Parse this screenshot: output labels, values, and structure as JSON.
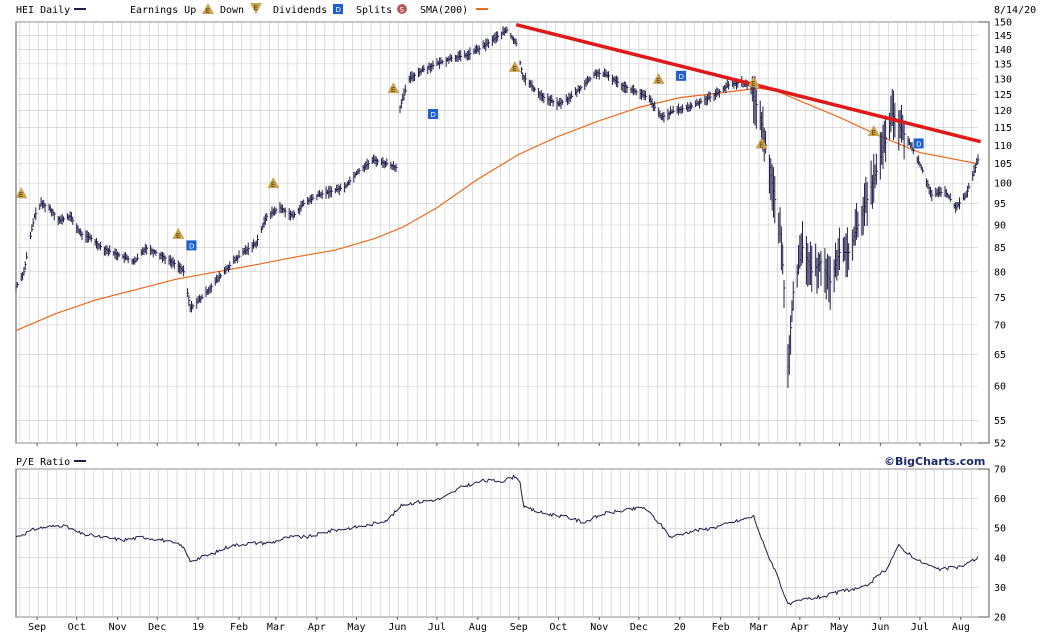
{
  "legend": {
    "ticker_label": "HEI Daily",
    "earnings_up_label": "Earnings Up",
    "down_label": "Down",
    "dividends_label": "Dividends",
    "splits_label": "Splits",
    "sma_label": "SMA(200)",
    "date_label": "8/14/20",
    "pe_label": "P/E Ratio",
    "brand": "©BigCharts.com"
  },
  "colors": {
    "price": "#1f1f4a",
    "sma": "#ee6a1e",
    "trendline": "#e01818",
    "earnings_marker": "#c9a350",
    "dividend_marker": "#1f5fd0",
    "split_marker": "#b05a5a",
    "grid": "#c8c8c8"
  },
  "chart_data": [
    {
      "type": "line",
      "title": "HEI Daily",
      "y_scale": "log",
      "ylim": [
        52,
        150
      ],
      "y_ticks": [
        52,
        55,
        60,
        65,
        70,
        75,
        80,
        85,
        90,
        95,
        100,
        105,
        110,
        115,
        120,
        125,
        130,
        135,
        140,
        145,
        150
      ],
      "x_ticks": [
        "Sep",
        "Oct",
        "Nov",
        "Dec",
        "19",
        "Feb",
        "Mar",
        "Apr",
        "May",
        "Jun",
        "Jul",
        "Aug",
        "Sep",
        "Oct",
        "Nov",
        "Dec",
        "20",
        "Feb",
        "Mar",
        "Apr",
        "May",
        "Jun",
        "Jul",
        "Aug"
      ],
      "x_range": [
        "2018-08-16",
        "2020-08-14"
      ],
      "grid": true,
      "series": [
        {
          "name": "HEI Daily",
          "x": [
            "2018-08-16",
            "2018-08-22",
            "2018-08-30",
            "2018-09-04",
            "2018-09-10",
            "2018-09-18",
            "2018-09-26",
            "2018-10-04",
            "2018-10-12",
            "2018-10-20",
            "2018-10-28",
            "2018-11-06",
            "2018-11-14",
            "2018-11-22",
            "2018-11-30",
            "2018-12-06",
            "2018-12-12",
            "2018-12-18",
            "2018-12-21",
            "2018-12-26",
            "2019-01-04",
            "2019-01-14",
            "2019-01-24",
            "2019-02-04",
            "2019-02-14",
            "2019-02-22",
            "2019-03-04",
            "2019-03-14",
            "2019-03-22",
            "2019-04-02",
            "2019-04-12",
            "2019-04-22",
            "2019-05-02",
            "2019-05-14",
            "2019-05-24",
            "2019-05-31",
            "2019-06-03",
            "2019-06-10",
            "2019-06-20",
            "2019-07-01",
            "2019-07-12",
            "2019-07-24",
            "2019-08-05",
            "2019-08-14",
            "2019-08-23",
            "2019-08-30",
            "2019-09-04",
            "2019-09-12",
            "2019-09-20",
            "2019-10-01",
            "2019-10-10",
            "2019-10-20",
            "2019-10-30",
            "2019-11-08",
            "2019-11-18",
            "2019-11-28",
            "2019-12-08",
            "2019-12-18",
            "2019-12-28",
            "2020-01-08",
            "2020-01-18",
            "2020-01-28",
            "2020-02-07",
            "2020-02-17",
            "2020-02-24",
            "2020-03-02",
            "2020-03-06",
            "2020-03-12",
            "2020-03-18",
            "2020-03-23",
            "2020-03-27",
            "2020-04-03",
            "2020-04-10",
            "2020-04-17",
            "2020-04-24",
            "2020-05-01",
            "2020-05-08",
            "2020-05-15",
            "2020-05-22",
            "2020-05-29",
            "2020-06-05",
            "2020-06-10",
            "2020-06-16",
            "2020-06-24",
            "2020-07-02",
            "2020-07-10",
            "2020-07-20",
            "2020-07-28",
            "2020-08-05",
            "2020-08-14"
          ],
          "y": [
            77,
            80,
            92,
            95,
            94,
            91,
            92,
            88,
            87,
            85,
            84,
            83,
            82,
            85,
            84,
            83,
            82,
            81,
            80,
            73,
            75,
            78,
            81,
            84,
            86,
            92,
            94,
            92,
            95,
            97,
            98,
            99,
            103,
            106,
            105,
            104,
            121,
            130,
            133,
            135,
            137,
            138,
            141,
            144,
            147,
            142,
            131,
            127,
            124,
            122,
            124,
            128,
            132,
            131,
            128,
            126,
            124,
            118,
            120,
            121,
            123,
            125,
            128,
            129,
            127,
            118,
            110,
            98,
            86,
            63,
            76,
            85,
            80,
            82,
            78,
            84,
            84,
            90,
            96,
            103,
            112,
            119,
            115,
            110,
            104,
            97,
            98,
            94,
            97,
            106
          ]
        },
        {
          "name": "SMA(200)",
          "x": [
            "2018-08-16",
            "2018-09-15",
            "2018-10-15",
            "2018-11-15",
            "2018-12-15",
            "2019-01-15",
            "2019-02-15",
            "2019-03-15",
            "2019-04-15",
            "2019-05-15",
            "2019-06-05",
            "2019-07-01",
            "2019-08-01",
            "2019-09-01",
            "2019-10-01",
            "2019-11-01",
            "2019-12-01",
            "2020-01-01",
            "2020-02-01",
            "2020-03-01",
            "2020-03-15",
            "2020-04-01",
            "2020-05-01",
            "2020-06-01",
            "2020-07-01",
            "2020-08-14"
          ],
          "y": [
            69,
            72,
            74.5,
            76.5,
            78.5,
            80,
            81.5,
            83,
            84.5,
            87,
            89.5,
            94,
            101,
            107.5,
            112.5,
            117,
            121,
            124,
            125.5,
            127,
            126,
            123,
            118,
            112.5,
            108,
            105
          ]
        },
        {
          "name": "Trendline",
          "x": [
            "2019-08-30",
            "2020-08-16"
          ],
          "y": [
            149,
            111
          ]
        }
      ],
      "markers": [
        {
          "kind": "earnings",
          "label": "E",
          "date": "2018-08-20",
          "y": 97.5
        },
        {
          "kind": "earnings",
          "label": "E",
          "date": "2018-12-17",
          "y": 88
        },
        {
          "kind": "earnings",
          "label": "E",
          "date": "2019-02-27",
          "y": 100
        },
        {
          "kind": "earnings",
          "label": "E",
          "date": "2019-05-29",
          "y": 127
        },
        {
          "kind": "earnings",
          "label": "E",
          "date": "2019-08-29",
          "y": 134
        },
        {
          "kind": "earnings",
          "label": "E",
          "date": "2019-12-16",
          "y": 130
        },
        {
          "kind": "earnings",
          "label": "E",
          "date": "2020-02-26",
          "y": 129
        },
        {
          "kind": "earnings",
          "label": "E",
          "date": "2020-03-03",
          "y": 110.5
        },
        {
          "kind": "earnings",
          "label": "E",
          "date": "2020-05-27",
          "y": 114
        },
        {
          "kind": "dividend",
          "label": "D",
          "date": "2018-12-27",
          "y": 85.5
        },
        {
          "kind": "dividend",
          "label": "D",
          "date": "2019-06-28",
          "y": 119
        },
        {
          "kind": "dividend",
          "label": "D",
          "date": "2020-01-02",
          "y": 131
        },
        {
          "kind": "dividend",
          "label": "D",
          "date": "2020-06-30",
          "y": 110.5
        }
      ]
    },
    {
      "type": "line",
      "title": "P/E Ratio",
      "ylim": [
        20,
        70
      ],
      "y_ticks": [
        20,
        30,
        40,
        50,
        60,
        70
      ],
      "x_range": [
        "2018-08-16",
        "2020-08-14"
      ],
      "grid": true,
      "series": [
        {
          "name": "P/E Ratio",
          "x": [
            "2018-08-16",
            "2018-09-01",
            "2018-09-20",
            "2018-10-05",
            "2018-10-20",
            "2018-11-05",
            "2018-11-20",
            "2018-12-05",
            "2018-12-20",
            "2018-12-26",
            "2019-01-10",
            "2019-01-25",
            "2019-02-10",
            "2019-02-25",
            "2019-03-10",
            "2019-03-25",
            "2019-04-10",
            "2019-04-25",
            "2019-05-10",
            "2019-05-25",
            "2019-06-05",
            "2019-06-20",
            "2019-07-05",
            "2019-07-20",
            "2019-08-05",
            "2019-08-20",
            "2019-09-01",
            "2019-09-05",
            "2019-09-20",
            "2019-10-05",
            "2019-10-20",
            "2019-11-05",
            "2019-11-20",
            "2019-12-05",
            "2019-12-16",
            "2019-12-25",
            "2020-01-10",
            "2020-01-25",
            "2020-02-10",
            "2020-02-26",
            "2020-03-05",
            "2020-03-15",
            "2020-03-23",
            "2020-04-05",
            "2020-04-20",
            "2020-05-05",
            "2020-05-20",
            "2020-06-05",
            "2020-06-15",
            "2020-06-30",
            "2020-07-15",
            "2020-08-01",
            "2020-08-14"
          ],
          "y": [
            47,
            50,
            51,
            48,
            47,
            46,
            47,
            46,
            44,
            39,
            41,
            44,
            45,
            45,
            47,
            47,
            49,
            50,
            51,
            53,
            58,
            59,
            60,
            64,
            66,
            66,
            68,
            57,
            55,
            54,
            52,
            55,
            56,
            57,
            52,
            47,
            49,
            50,
            52,
            54,
            44,
            34,
            24,
            26,
            27,
            29,
            30,
            36,
            44,
            39,
            36,
            37,
            40
          ]
        }
      ]
    }
  ]
}
